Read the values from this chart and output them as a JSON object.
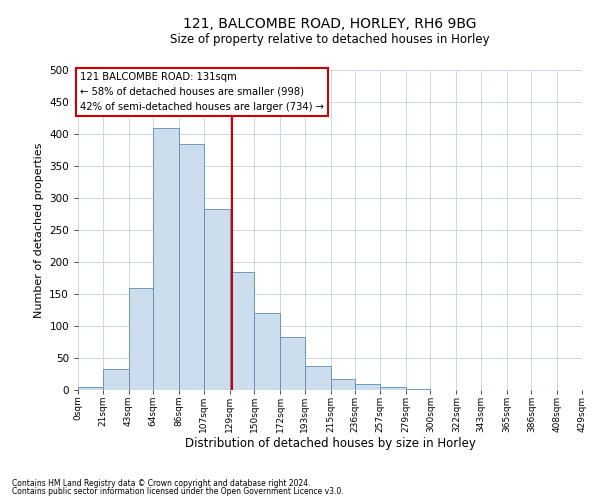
{
  "title1": "121, BALCOMBE ROAD, HORLEY, RH6 9BG",
  "title2": "Size of property relative to detached houses in Horley",
  "xlabel": "Distribution of detached houses by size in Horley",
  "ylabel": "Number of detached properties",
  "footnote1": "Contains HM Land Registry data © Crown copyright and database right 2024.",
  "footnote2": "Contains public sector information licensed under the Open Government Licence v3.0.",
  "bar_heights": [
    5,
    33,
    160,
    410,
    385,
    283,
    185,
    120,
    83,
    38,
    17,
    10,
    5,
    2,
    0,
    0,
    0,
    0,
    0,
    0
  ],
  "bin_edges": [
    0,
    21,
    43,
    64,
    86,
    107,
    129,
    150,
    172,
    193,
    215,
    236,
    257,
    279,
    300,
    322,
    343,
    365,
    386,
    408,
    429
  ],
  "x_tick_labels": [
    "0sqm",
    "21sqm",
    "43sqm",
    "64sqm",
    "86sqm",
    "107sqm",
    "129sqm",
    "150sqm",
    "172sqm",
    "193sqm",
    "215sqm",
    "236sqm",
    "257sqm",
    "279sqm",
    "300sqm",
    "322sqm",
    "343sqm",
    "365sqm",
    "386sqm",
    "408sqm",
    "429sqm"
  ],
  "bar_color": "#ccdded",
  "bar_edge_color": "#5b8db0",
  "vline_x": 131,
  "vline_color": "#cc0000",
  "annotation_title": "121 BALCOMBE ROAD: 131sqm",
  "annotation_line1": "← 58% of detached houses are smaller (998)",
  "annotation_line2": "42% of semi-detached houses are larger (734) →",
  "annotation_box_color": "#ffffff",
  "annotation_box_edge": "#cc0000",
  "ylim": [
    0,
    500
  ],
  "yticks": [
    0,
    50,
    100,
    150,
    200,
    250,
    300,
    350,
    400,
    450,
    500
  ],
  "background_color": "#ffffff",
  "grid_color": "#c8daea"
}
